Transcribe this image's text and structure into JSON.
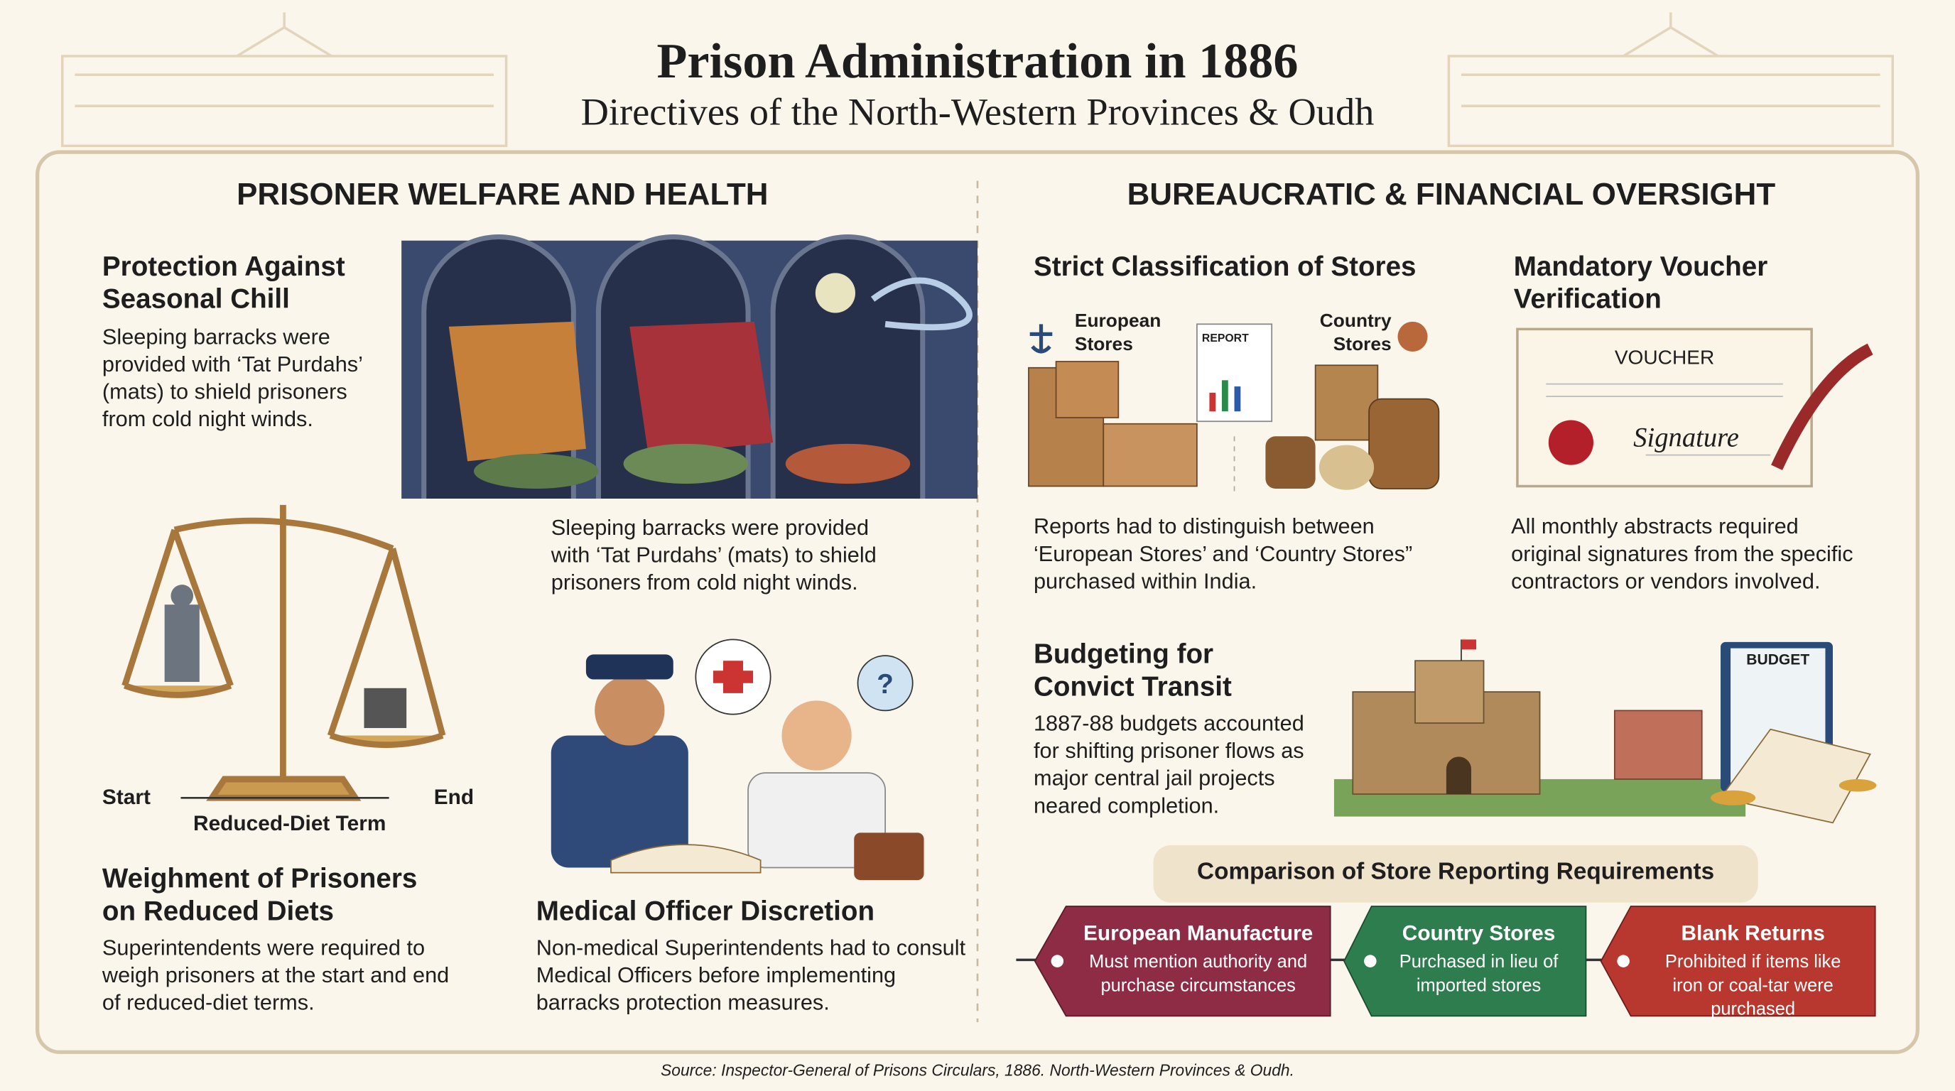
{
  "header": {
    "title": "Prison Administration in 1886",
    "subtitle": "Directives of the North-Western Provinces & Oudh"
  },
  "left": {
    "heading": "PRISONER WELFARE AND HEALTH",
    "chill": {
      "title": "Protection Against Seasonal Chill",
      "text": "Sleeping barracks were provided with ‘Tat Purdahs’ (mats) to shield prisoners from cold night winds.",
      "caption": "Sleeping barracks were provided with ‘Tat Purdahs’ (mats) to shield prisoners from cold night winds."
    },
    "scale": {
      "start": "Start",
      "end": "End",
      "term": "Reduced-Diet Term"
    },
    "weighment": {
      "title": "Weighment of Prisoners on Reduced Diets",
      "text": "Superintendents were required to weigh prisoners at the start and end of reduced-diet terms."
    },
    "medical": {
      "title": "Medical Officer Discretion",
      "text": "Non-medical Superintendents had to consult Medical Officers before implementing barracks protection measures."
    }
  },
  "right": {
    "heading": "BUREAUCRATIC & FINANCIAL OVERSIGHT",
    "stores": {
      "title": "Strict Classification of Stores",
      "european": "European Stores",
      "country": "Country Stores",
      "report": "REPORT",
      "text": "Reports had to distinguish between ‘European Stores’ and ‘Country Stores” purchased within India."
    },
    "voucher": {
      "title": "Mandatory Voucher Verification",
      "label": "VOUCHER",
      "signature": "Signature",
      "text": "All monthly abstracts required original signatures from the specific contractors or vendors involved."
    },
    "transit": {
      "title": "Budgeting for Convict Transit",
      "budget": "BUDGET",
      "text": "1887-88 budgets accounted for shifting prisoner flows as major central jail projects neared completion."
    },
    "comparison": {
      "title": "Comparison of Store Reporting Requirements",
      "tags": [
        {
          "title": "European Manufacture",
          "text": "Must mention authority and purchase circumstances"
        },
        {
          "title": "Country Stores",
          "text": "Purchased in lieu of imported stores"
        },
        {
          "title": "Blank Returns",
          "text": "Prohibited if items like iron or coal-tar were purchased"
        }
      ]
    }
  },
  "source": "Source: Inspector-General of Prisons Circulars, 1886. North-Western Provinces & Oudh."
}
